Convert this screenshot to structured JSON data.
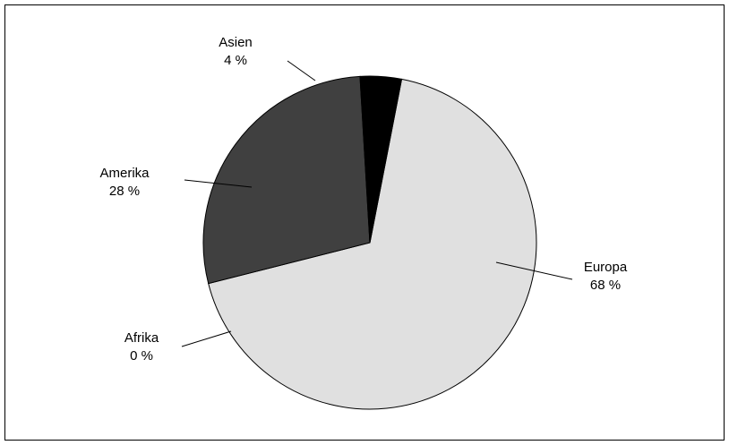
{
  "chart_data": {
    "type": "pie",
    "title": "",
    "start_angle_deg": 11,
    "direction": "clockwise",
    "slices": [
      {
        "label": "Europa",
        "value": 68,
        "value_text": "68 %",
        "color": "#e0e0e0"
      },
      {
        "label": "Afrika",
        "value": 0,
        "value_text": "0 %",
        "color": "#f2f2f2"
      },
      {
        "label": "Amerika",
        "value": 28,
        "value_text": "28 %",
        "color": "#404040"
      },
      {
        "label": "Asien",
        "value": 4,
        "value_text": "4 %",
        "color": "#000000"
      }
    ],
    "legend": "none",
    "labels": "outside with leader lines"
  }
}
